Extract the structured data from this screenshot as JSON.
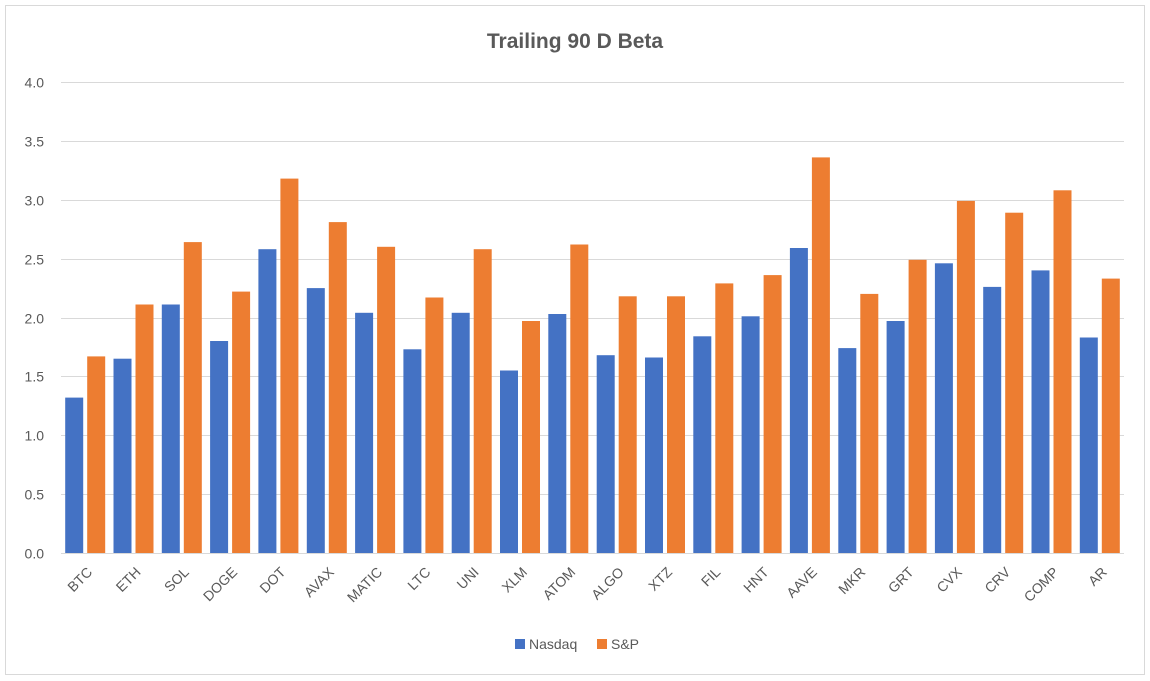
{
  "chart_data": {
    "type": "bar",
    "title": "Trailing 90 D Beta",
    "xlabel": "",
    "ylabel": "",
    "ylim": [
      0,
      4.0
    ],
    "yticks": [
      "0.0",
      "0.5",
      "1.0",
      "1.5",
      "2.0",
      "2.5",
      "3.0",
      "3.5",
      "4.0"
    ],
    "grid": true,
    "legend_position": "bottom",
    "categories": [
      "BTC",
      "ETH",
      "SOL",
      "DOGE",
      "DOT",
      "AVAX",
      "MATIC",
      "LTC",
      "UNI",
      "XLM",
      "ATOM",
      "ALGO",
      "XTZ",
      "FIL",
      "HNT",
      "AAVE",
      "MKR",
      "GRT",
      "CVX",
      "CRV",
      "COMP",
      "AR"
    ],
    "series": [
      {
        "name": "Nasdaq",
        "color": "#4472C4",
        "values": [
          1.32,
          1.65,
          2.11,
          1.8,
          2.58,
          2.25,
          2.04,
          1.73,
          2.04,
          1.55,
          2.03,
          1.68,
          1.66,
          1.84,
          2.01,
          2.59,
          1.74,
          1.97,
          2.46,
          2.26,
          2.4,
          1.83
        ]
      },
      {
        "name": "S&P",
        "color": "#ED7D31",
        "values": [
          1.67,
          2.11,
          2.64,
          2.22,
          3.18,
          2.81,
          2.6,
          2.17,
          2.58,
          1.97,
          2.62,
          2.18,
          2.18,
          2.29,
          2.36,
          3.36,
          2.2,
          2.49,
          2.99,
          2.89,
          3.08,
          2.33
        ]
      }
    ]
  }
}
